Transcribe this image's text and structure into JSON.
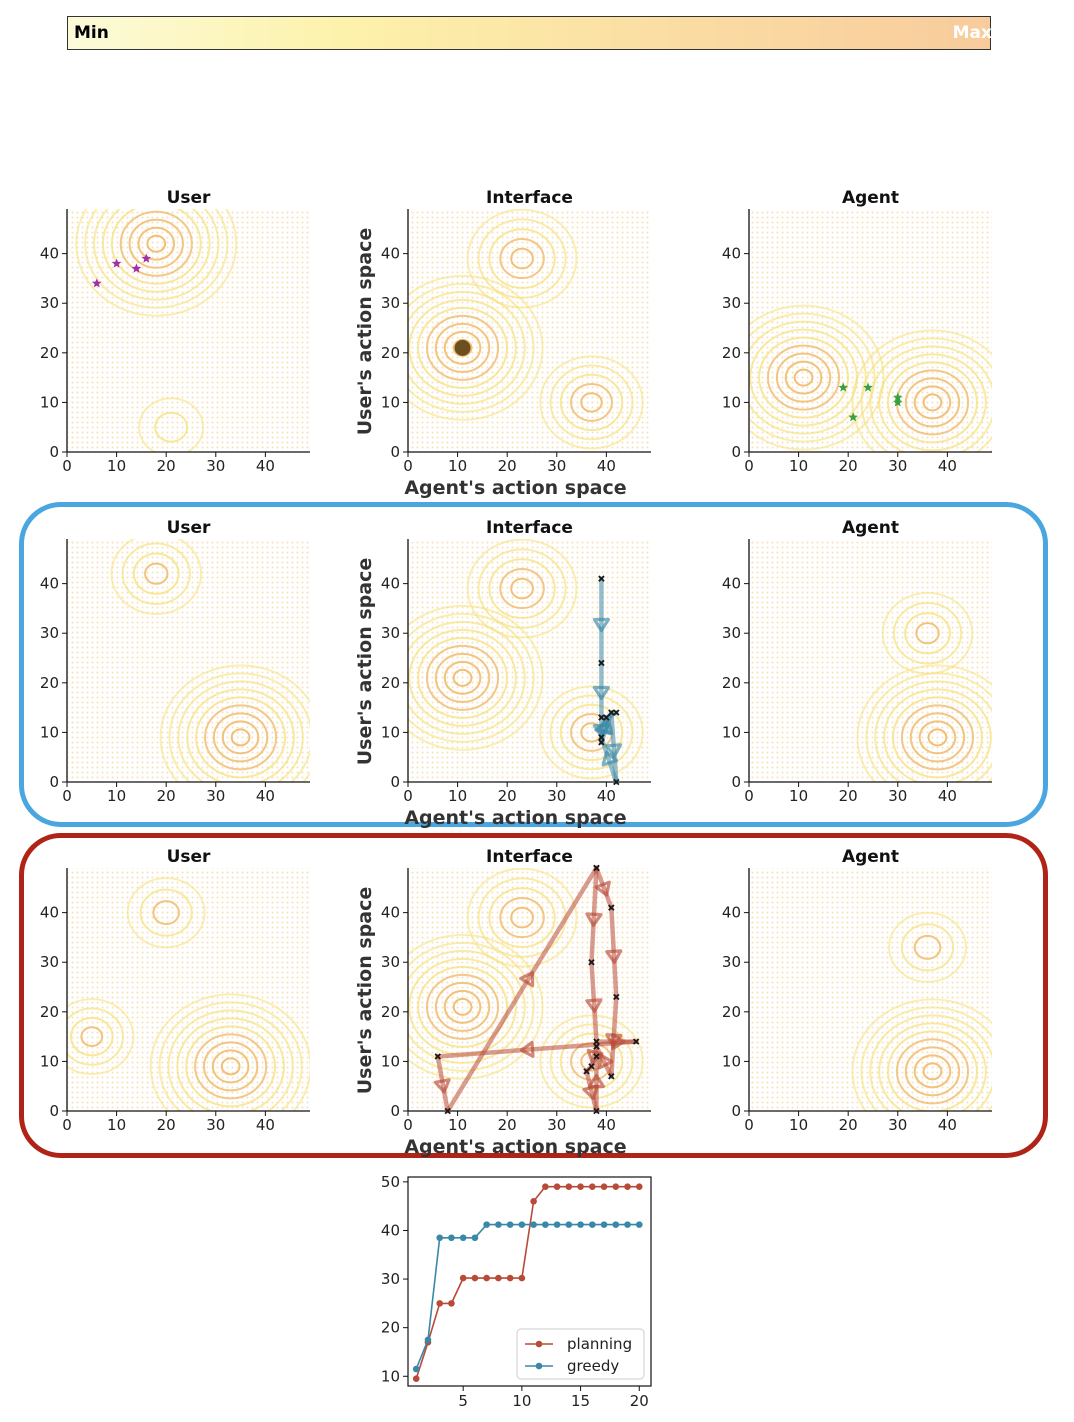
{
  "colorbar": {
    "min_label": "Min",
    "max_label": "Max"
  },
  "panel_titles": {
    "user": "User",
    "interface": "Interface",
    "agent": "Agent"
  },
  "axis_labels": {
    "x": "Agent's action space",
    "y": "User's action space"
  },
  "axis_ticks": [
    "0",
    "10",
    "20",
    "30",
    "40"
  ],
  "colors": {
    "contour": "#f5e07a",
    "contour_peak": "#f0b86a",
    "greedy": "#3a88a8",
    "planning": "#b84a38",
    "greedy_box": "#4aa6e0",
    "planning_box": "#b02418"
  },
  "chart_data": [
    {
      "type": "contour",
      "row": "top",
      "panel": "User",
      "xlim": [
        0,
        49
      ],
      "ylim": [
        0,
        49
      ],
      "peaks": [
        {
          "x": 18,
          "y": 42,
          "h": 1.0
        },
        {
          "x": 21,
          "y": 5,
          "h": 0.25
        }
      ],
      "markers": {
        "shape": "star",
        "color": "#a030a8",
        "points": [
          [
            6,
            34
          ],
          [
            10,
            38
          ],
          [
            14,
            37
          ],
          [
            16,
            39
          ]
        ]
      }
    },
    {
      "type": "contour",
      "row": "top",
      "panel": "Interface",
      "xlim": [
        0,
        49
      ],
      "ylim": [
        0,
        49
      ],
      "peaks": [
        {
          "x": 11,
          "y": 21,
          "h": 1.0
        },
        {
          "x": 23,
          "y": 39,
          "h": 0.6
        },
        {
          "x": 37,
          "y": 10,
          "h": 0.55
        }
      ],
      "markers": {
        "shape": "circle",
        "color": "#6b4f1e",
        "points": [
          [
            11,
            21
          ]
        ]
      }
    },
    {
      "type": "contour",
      "row": "top",
      "panel": "Agent",
      "xlim": [
        0,
        49
      ],
      "ylim": [
        0,
        49
      ],
      "peaks": [
        {
          "x": 11,
          "y": 15,
          "h": 1.0
        },
        {
          "x": 37,
          "y": 10,
          "h": 1.0
        }
      ],
      "markers": {
        "shape": "star",
        "color": "#3aa040",
        "points": [
          [
            19,
            13
          ],
          [
            24,
            13
          ],
          [
            21,
            7
          ],
          [
            30,
            11
          ],
          [
            30,
            10
          ]
        ]
      }
    },
    {
      "type": "contour",
      "row": "greedy",
      "panel": "User",
      "xlim": [
        0,
        49
      ],
      "ylim": [
        0,
        49
      ],
      "peaks": [
        {
          "x": 35,
          "y": 9,
          "h": 1.0
        },
        {
          "x": 18,
          "y": 42,
          "h": 0.45
        }
      ]
    },
    {
      "type": "contour",
      "row": "greedy",
      "panel": "Interface",
      "xlim": [
        0,
        49
      ],
      "ylim": [
        0,
        49
      ],
      "peaks": [
        {
          "x": 11,
          "y": 21,
          "h": 1.0
        },
        {
          "x": 23,
          "y": 39,
          "h": 0.6
        },
        {
          "x": 37,
          "y": 10,
          "h": 0.55
        }
      ],
      "trajectory": {
        "color": "#3a88a8",
        "points": [
          [
            39,
            41
          ],
          [
            39,
            24
          ],
          [
            39,
            13
          ],
          [
            39,
            8
          ],
          [
            41,
            14
          ],
          [
            42,
            0
          ],
          [
            39,
            9
          ],
          [
            40,
            13
          ],
          [
            42,
            14
          ]
        ]
      }
    },
    {
      "type": "contour",
      "row": "greedy",
      "panel": "Agent",
      "xlim": [
        0,
        49
      ],
      "ylim": [
        0,
        49
      ],
      "peaks": [
        {
          "x": 38,
          "y": 9,
          "h": 1.0
        },
        {
          "x": 36,
          "y": 30,
          "h": 0.45
        }
      ]
    },
    {
      "type": "contour",
      "row": "planning",
      "panel": "User",
      "xlim": [
        0,
        49
      ],
      "ylim": [
        0,
        49
      ],
      "peaks": [
        {
          "x": 33,
          "y": 9,
          "h": 1.0
        },
        {
          "x": 5,
          "y": 15,
          "h": 0.4
        },
        {
          "x": 20,
          "y": 40,
          "h": 0.35
        }
      ]
    },
    {
      "type": "contour",
      "row": "planning",
      "panel": "Interface",
      "xlim": [
        0,
        49
      ],
      "ylim": [
        0,
        49
      ],
      "peaks": [
        {
          "x": 11,
          "y": 21,
          "h": 1.0
        },
        {
          "x": 23,
          "y": 39,
          "h": 0.6
        },
        {
          "x": 37,
          "y": 10,
          "h": 0.55
        }
      ],
      "trajectory": {
        "color": "#b84a38",
        "points": [
          [
            38,
            49
          ],
          [
            37,
            30
          ],
          [
            38,
            14
          ],
          [
            46,
            14
          ],
          [
            6,
            11
          ],
          [
            8,
            0
          ],
          [
            38,
            49
          ],
          [
            41,
            41
          ],
          [
            42,
            23
          ],
          [
            41,
            7
          ],
          [
            38,
            13
          ],
          [
            37,
            9
          ],
          [
            36,
            8
          ],
          [
            38,
            0
          ],
          [
            38,
            11
          ]
        ]
      }
    },
    {
      "type": "contour",
      "row": "planning",
      "panel": "Agent",
      "xlim": [
        0,
        49
      ],
      "ylim": [
        0,
        49
      ],
      "peaks": [
        {
          "x": 37,
          "y": 8,
          "h": 1.0
        },
        {
          "x": 36,
          "y": 33,
          "h": 0.35
        }
      ]
    },
    {
      "type": "line",
      "title": "",
      "xlabel": "",
      "ylabel": "",
      "xlim": [
        0.3,
        21
      ],
      "ylim": [
        8,
        51
      ],
      "xticks": [
        5,
        10,
        15,
        20
      ],
      "yticks": [
        10,
        20,
        30,
        40,
        50
      ],
      "legend_position": "bottom-right",
      "x": [
        1,
        2,
        3,
        4,
        5,
        6,
        7,
        8,
        9,
        10,
        11,
        12,
        13,
        14,
        15,
        16,
        17,
        18,
        19,
        20
      ],
      "series": [
        {
          "name": "planning",
          "color": "#b84a38",
          "values": [
            9.5,
            17,
            25,
            25,
            30.2,
            30.2,
            30.2,
            30.2,
            30.2,
            30.2,
            46,
            49,
            49,
            49,
            49,
            49,
            49,
            49,
            49,
            49
          ]
        },
        {
          "name": "greedy",
          "color": "#3a88a8",
          "values": [
            11.5,
            17.5,
            38.5,
            38.5,
            38.5,
            38.5,
            41.2,
            41.2,
            41.2,
            41.2,
            41.2,
            41.2,
            41.2,
            41.2,
            41.2,
            41.2,
            41.2,
            41.2,
            41.2,
            41.2
          ]
        }
      ]
    }
  ]
}
